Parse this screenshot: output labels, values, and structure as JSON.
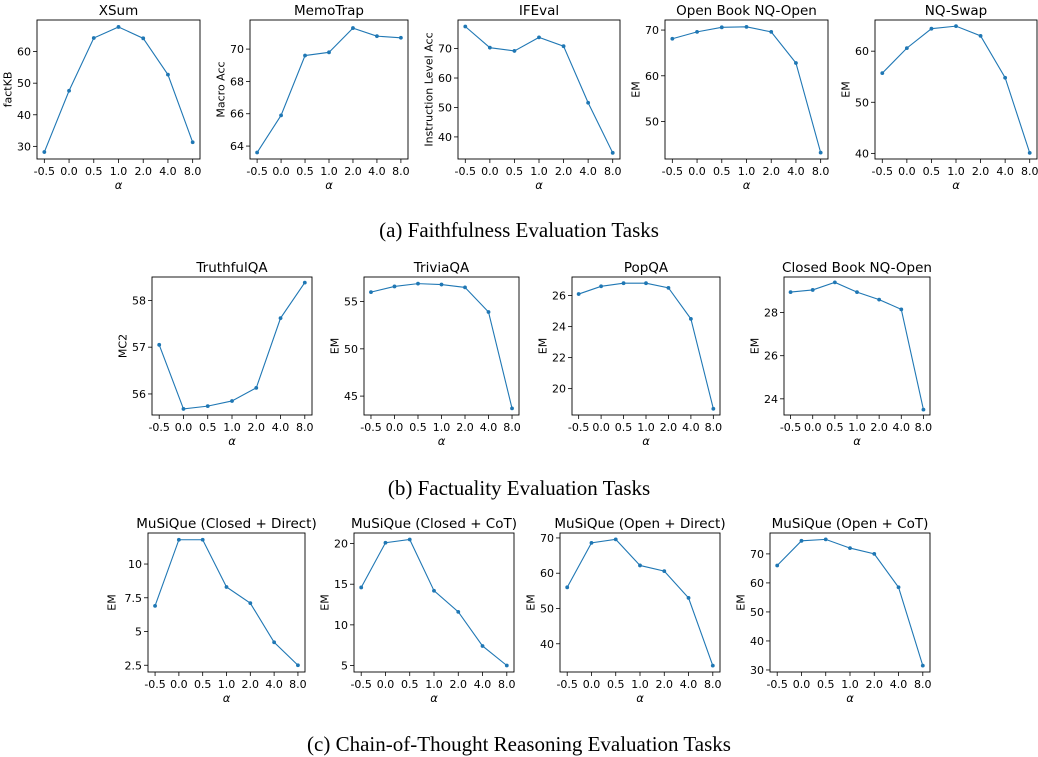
{
  "captions": {
    "a": "(a) Faithfulness Evaluation Tasks",
    "b": "(b) Factuality Evaluation Tasks",
    "c": "(c) Chain-of-Thought Reasoning Evaluation Tasks"
  },
  "style": {
    "line_color": "#1f77b4"
  },
  "chart_data": [
    {
      "type": "line",
      "group": "a",
      "title": "XSum",
      "xlabel": "α",
      "ylabel": "factKB",
      "categories": [
        "-0.5",
        "0.0",
        "0.5",
        "1.0",
        "2.0",
        "4.0",
        "8.0"
      ],
      "values": [
        28.2,
        47.6,
        64.3,
        67.8,
        64.2,
        52.7,
        31.3
      ],
      "ylim": [
        26.0,
        70.0
      ],
      "yticks": [
        30,
        40,
        50,
        60
      ]
    },
    {
      "type": "line",
      "group": "a",
      "title": "MemoTrap",
      "xlabel": "α",
      "ylabel": "Macro Acc",
      "categories": [
        "-0.5",
        "0.0",
        "0.5",
        "1.0",
        "2.0",
        "4.0",
        "8.0"
      ],
      "values": [
        63.6,
        65.9,
        69.6,
        69.8,
        71.3,
        70.8,
        70.7
      ],
      "ylim": [
        63.2,
        71.8
      ],
      "yticks": [
        64,
        66,
        68,
        70
      ]
    },
    {
      "type": "line",
      "group": "a",
      "title": "IFEval",
      "xlabel": "α",
      "ylabel": "Instruction Level Acc",
      "categories": [
        "-0.5",
        "0.0",
        "0.5",
        "1.0",
        "2.0",
        "4.0",
        "8.0"
      ],
      "values": [
        77.5,
        70.3,
        69.2,
        73.8,
        70.8,
        51.6,
        34.6
      ],
      "ylim": [
        32.5,
        79.7
      ],
      "yticks": [
        40,
        50,
        60,
        70
      ]
    },
    {
      "type": "line",
      "group": "a",
      "title": "Open Book NQ-Open",
      "xlabel": "α",
      "ylabel": "EM",
      "categories": [
        "-0.5",
        "0.0",
        "0.5",
        "1.0",
        "2.0",
        "4.0",
        "8.0"
      ],
      "values": [
        68.1,
        69.6,
        70.6,
        70.7,
        69.6,
        62.8,
        43.2
      ],
      "ylim": [
        41.8,
        72.2
      ],
      "yticks": [
        50,
        60,
        70
      ]
    },
    {
      "type": "line",
      "group": "a",
      "title": "NQ-Swap",
      "xlabel": "α",
      "ylabel": "EM",
      "categories": [
        "-0.5",
        "0.0",
        "0.5",
        "1.0",
        "2.0",
        "4.0",
        "8.0"
      ],
      "values": [
        55.7,
        60.6,
        64.4,
        64.9,
        63.0,
        54.8,
        40.1
      ],
      "ylim": [
        38.9,
        66.1
      ],
      "yticks": [
        40,
        50,
        60
      ]
    },
    {
      "type": "line",
      "group": "b",
      "title": "TruthfulQA",
      "xlabel": "α",
      "ylabel": "MC2",
      "categories": [
        "-0.5",
        "0.0",
        "0.5",
        "1.0",
        "2.0",
        "4.0",
        "8.0"
      ],
      "values": [
        57.05,
        55.68,
        55.74,
        55.85,
        56.13,
        57.62,
        58.38
      ],
      "ylim": [
        55.55,
        58.5
      ],
      "yticks": [
        56,
        57,
        58
      ]
    },
    {
      "type": "line",
      "group": "b",
      "title": "TriviaQA",
      "xlabel": "α",
      "ylabel": "EM",
      "categories": [
        "-0.5",
        "0.0",
        "0.5",
        "1.0",
        "2.0",
        "4.0",
        "8.0"
      ],
      "values": [
        56.0,
        56.6,
        56.9,
        56.8,
        56.5,
        53.9,
        43.7
      ],
      "ylim": [
        43.0,
        57.6
      ],
      "yticks": [
        45,
        50,
        55
      ]
    },
    {
      "type": "line",
      "group": "b",
      "title": "PopQA",
      "xlabel": "α",
      "ylabel": "EM",
      "categories": [
        "-0.5",
        "0.0",
        "0.5",
        "1.0",
        "2.0",
        "4.0",
        "8.0"
      ],
      "values": [
        26.1,
        26.6,
        26.8,
        26.8,
        26.5,
        24.5,
        18.7
      ],
      "ylim": [
        18.3,
        27.2
      ],
      "yticks": [
        20,
        22,
        24,
        26
      ]
    },
    {
      "type": "line",
      "group": "b",
      "title": "Closed Book NQ-Open",
      "xlabel": "α",
      "ylabel": "EM",
      "categories": [
        "-0.5",
        "0.0",
        "0.5",
        "1.0",
        "2.0",
        "4.0",
        "8.0"
      ],
      "values": [
        28.95,
        29.05,
        29.4,
        28.95,
        28.6,
        28.15,
        23.5
      ],
      "ylim": [
        23.25,
        29.65
      ],
      "yticks": [
        24,
        26,
        28
      ]
    },
    {
      "type": "line",
      "group": "c",
      "title": "MuSiQue (Closed + Direct)",
      "xlabel": "α",
      "ylabel": "EM",
      "categories": [
        "-0.5",
        "0.0",
        "0.5",
        "1.0",
        "2.0",
        "4.0",
        "8.0"
      ],
      "values": [
        6.9,
        11.8,
        11.8,
        8.3,
        7.1,
        4.2,
        2.5
      ],
      "ylim": [
        2.0,
        12.3
      ],
      "yticks": [
        2.5,
        5.0,
        7.5,
        10.0
      ]
    },
    {
      "type": "line",
      "group": "c",
      "title": "MuSiQue (Closed + CoT)",
      "xlabel": "α",
      "ylabel": "EM",
      "categories": [
        "-0.5",
        "0.0",
        "0.5",
        "1.0",
        "2.0",
        "4.0",
        "8.0"
      ],
      "values": [
        14.6,
        20.1,
        20.5,
        14.2,
        11.6,
        7.4,
        5.0
      ],
      "ylim": [
        4.2,
        21.3
      ],
      "yticks": [
        5,
        10,
        15,
        20
      ]
    },
    {
      "type": "line",
      "group": "c",
      "title": "MuSiQue (Open + Direct)",
      "xlabel": "α",
      "ylabel": "EM",
      "categories": [
        "-0.5",
        "0.0",
        "0.5",
        "1.0",
        "2.0",
        "4.0",
        "8.0"
      ],
      "values": [
        56.0,
        68.6,
        69.6,
        62.2,
        60.6,
        53.0,
        33.8
      ],
      "ylim": [
        32.0,
        71.4
      ],
      "yticks": [
        40,
        50,
        60,
        70
      ]
    },
    {
      "type": "line",
      "group": "c",
      "title": "MuSiQue (Open + CoT)",
      "xlabel": "α",
      "ylabel": "EM",
      "categories": [
        "-0.5",
        "0.0",
        "0.5",
        "1.0",
        "2.0",
        "4.0",
        "8.0"
      ],
      "values": [
        66.0,
        74.5,
        75.0,
        72.0,
        70.0,
        58.5,
        31.5
      ],
      "ylim": [
        29.3,
        77.2
      ],
      "yticks": [
        30,
        40,
        50,
        60,
        70
      ]
    }
  ]
}
